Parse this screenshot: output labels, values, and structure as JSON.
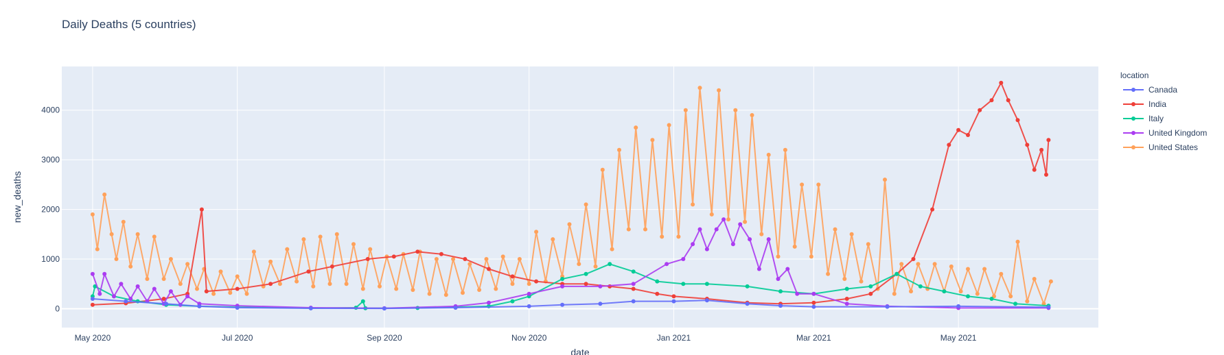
{
  "chart_data": {
    "type": "line",
    "title": "Daily Deaths (5 countries)",
    "xlabel": "date",
    "ylabel": "new_deaths",
    "x_range": [
      "2020-04-18",
      "2021-06-29"
    ],
    "ylim": [
      -380,
      4880
    ],
    "x_ticks": [
      {
        "date": "2020-05-01",
        "label": "May 2020"
      },
      {
        "date": "2020-07-01",
        "label": "Jul 2020"
      },
      {
        "date": "2020-09-01",
        "label": "Sep 2020"
      },
      {
        "date": "2020-11-01",
        "label": "Nov 2020"
      },
      {
        "date": "2021-01-01",
        "label": "Jan 2021"
      },
      {
        "date": "2021-03-01",
        "label": "Mar 2021"
      },
      {
        "date": "2021-05-01",
        "label": "May 2021"
      }
    ],
    "y_ticks": [
      0,
      1000,
      2000,
      3000,
      4000
    ],
    "grid": true,
    "legend_title": "location",
    "legend_position": "right",
    "background": "#e5ecf6",
    "series": [
      {
        "name": "United States",
        "color": "#ffa15a",
        "points": [
          [
            "2020-05-01",
            1900
          ],
          [
            "2020-05-03",
            1200
          ],
          [
            "2020-05-06",
            2300
          ],
          [
            "2020-05-09",
            1500
          ],
          [
            "2020-05-11",
            1000
          ],
          [
            "2020-05-14",
            1750
          ],
          [
            "2020-05-17",
            850
          ],
          [
            "2020-05-20",
            1500
          ],
          [
            "2020-05-24",
            600
          ],
          [
            "2020-05-27",
            1450
          ],
          [
            "2020-05-31",
            600
          ],
          [
            "2020-06-03",
            1000
          ],
          [
            "2020-06-07",
            500
          ],
          [
            "2020-06-10",
            900
          ],
          [
            "2020-06-14",
            400
          ],
          [
            "2020-06-17",
            800
          ],
          [
            "2020-06-21",
            300
          ],
          [
            "2020-06-24",
            750
          ],
          [
            "2020-06-28",
            320
          ],
          [
            "2020-07-01",
            650
          ],
          [
            "2020-07-05",
            300
          ],
          [
            "2020-07-08",
            1150
          ],
          [
            "2020-07-12",
            450
          ],
          [
            "2020-07-15",
            950
          ],
          [
            "2020-07-19",
            500
          ],
          [
            "2020-07-22",
            1200
          ],
          [
            "2020-07-26",
            550
          ],
          [
            "2020-07-29",
            1400
          ],
          [
            "2020-08-02",
            450
          ],
          [
            "2020-08-05",
            1450
          ],
          [
            "2020-08-09",
            500
          ],
          [
            "2020-08-12",
            1500
          ],
          [
            "2020-08-16",
            500
          ],
          [
            "2020-08-19",
            1300
          ],
          [
            "2020-08-23",
            400
          ],
          [
            "2020-08-26",
            1200
          ],
          [
            "2020-08-30",
            450
          ],
          [
            "2020-09-02",
            1050
          ],
          [
            "2020-09-06",
            400
          ],
          [
            "2020-09-09",
            1100
          ],
          [
            "2020-09-13",
            380
          ],
          [
            "2020-09-16",
            1150
          ],
          [
            "2020-09-20",
            300
          ],
          [
            "2020-09-23",
            1000
          ],
          [
            "2020-09-27",
            280
          ],
          [
            "2020-09-30",
            1000
          ],
          [
            "2020-10-04",
            320
          ],
          [
            "2020-10-07",
            900
          ],
          [
            "2020-10-11",
            380
          ],
          [
            "2020-10-14",
            1000
          ],
          [
            "2020-10-18",
            400
          ],
          [
            "2020-10-21",
            1050
          ],
          [
            "2020-10-25",
            500
          ],
          [
            "2020-10-28",
            1000
          ],
          [
            "2020-11-01",
            500
          ],
          [
            "2020-11-04",
            1550
          ],
          [
            "2020-11-08",
            550
          ],
          [
            "2020-11-11",
            1400
          ],
          [
            "2020-11-15",
            650
          ],
          [
            "2020-11-18",
            1700
          ],
          [
            "2020-11-22",
            900
          ],
          [
            "2020-11-25",
            2100
          ],
          [
            "2020-11-29",
            850
          ],
          [
            "2020-12-02",
            2800
          ],
          [
            "2020-12-06",
            1200
          ],
          [
            "2020-12-09",
            3200
          ],
          [
            "2020-12-13",
            1600
          ],
          [
            "2020-12-16",
            3650
          ],
          [
            "2020-12-20",
            1600
          ],
          [
            "2020-12-23",
            3400
          ],
          [
            "2020-12-27",
            1450
          ],
          [
            "2020-12-30",
            3700
          ],
          [
            "2021-01-03",
            1450
          ],
          [
            "2021-01-06",
            4000
          ],
          [
            "2021-01-09",
            2100
          ],
          [
            "2021-01-12",
            4450
          ],
          [
            "2021-01-17",
            1900
          ],
          [
            "2021-01-20",
            4400
          ],
          [
            "2021-01-24",
            1800
          ],
          [
            "2021-01-27",
            4000
          ],
          [
            "2021-01-31",
            1750
          ],
          [
            "2021-02-03",
            3900
          ],
          [
            "2021-02-07",
            1500
          ],
          [
            "2021-02-10",
            3100
          ],
          [
            "2021-02-14",
            1050
          ],
          [
            "2021-02-17",
            3200
          ],
          [
            "2021-02-21",
            1250
          ],
          [
            "2021-02-24",
            2500
          ],
          [
            "2021-02-28",
            1050
          ],
          [
            "2021-03-03",
            2500
          ],
          [
            "2021-03-07",
            700
          ],
          [
            "2021-03-10",
            1600
          ],
          [
            "2021-03-14",
            600
          ],
          [
            "2021-03-17",
            1500
          ],
          [
            "2021-03-21",
            550
          ],
          [
            "2021-03-24",
            1300
          ],
          [
            "2021-03-28",
            400
          ],
          [
            "2021-03-31",
            2600
          ],
          [
            "2021-04-04",
            300
          ],
          [
            "2021-04-07",
            900
          ],
          [
            "2021-04-11",
            350
          ],
          [
            "2021-04-14",
            900
          ],
          [
            "2021-04-18",
            400
          ],
          [
            "2021-04-21",
            900
          ],
          [
            "2021-04-25",
            350
          ],
          [
            "2021-04-28",
            850
          ],
          [
            "2021-05-02",
            350
          ],
          [
            "2021-05-05",
            800
          ],
          [
            "2021-05-09",
            300
          ],
          [
            "2021-05-12",
            800
          ],
          [
            "2021-05-16",
            250
          ],
          [
            "2021-05-19",
            700
          ],
          [
            "2021-05-23",
            250
          ],
          [
            "2021-05-26",
            1350
          ],
          [
            "2021-05-30",
            150
          ],
          [
            "2021-06-02",
            600
          ],
          [
            "2021-06-06",
            100
          ],
          [
            "2021-06-09",
            550
          ]
        ]
      },
      {
        "name": "India",
        "color": "#ef3f38",
        "points": [
          [
            "2020-05-01",
            80
          ],
          [
            "2020-05-15",
            110
          ],
          [
            "2020-05-31",
            200
          ],
          [
            "2020-06-10",
            300
          ],
          [
            "2020-06-16",
            2000
          ],
          [
            "2020-06-18",
            350
          ],
          [
            "2020-07-01",
            400
          ],
          [
            "2020-07-15",
            500
          ],
          [
            "2020-07-31",
            750
          ],
          [
            "2020-08-10",
            850
          ],
          [
            "2020-08-25",
            1000
          ],
          [
            "2020-09-05",
            1050
          ],
          [
            "2020-09-15",
            1150
          ],
          [
            "2020-09-25",
            1100
          ],
          [
            "2020-10-05",
            1000
          ],
          [
            "2020-10-15",
            800
          ],
          [
            "2020-10-25",
            650
          ],
          [
            "2020-11-04",
            550
          ],
          [
            "2020-11-15",
            500
          ],
          [
            "2020-11-25",
            500
          ],
          [
            "2020-12-05",
            450
          ],
          [
            "2020-12-15",
            400
          ],
          [
            "2020-12-25",
            300
          ],
          [
            "2021-01-01",
            250
          ],
          [
            "2021-01-15",
            200
          ],
          [
            "2021-02-01",
            120
          ],
          [
            "2021-02-15",
            100
          ],
          [
            "2021-03-01",
            120
          ],
          [
            "2021-03-15",
            200
          ],
          [
            "2021-03-25",
            300
          ],
          [
            "2021-04-05",
            700
          ],
          [
            "2021-04-12",
            1000
          ],
          [
            "2021-04-20",
            2000
          ],
          [
            "2021-04-27",
            3300
          ],
          [
            "2021-05-01",
            3600
          ],
          [
            "2021-05-05",
            3500
          ],
          [
            "2021-05-10",
            4000
          ],
          [
            "2021-05-15",
            4200
          ],
          [
            "2021-05-19",
            4550
          ],
          [
            "2021-05-22",
            4200
          ],
          [
            "2021-05-26",
            3800
          ],
          [
            "2021-05-30",
            3300
          ],
          [
            "2021-06-02",
            2800
          ],
          [
            "2021-06-05",
            3200
          ],
          [
            "2021-06-07",
            2700
          ],
          [
            "2021-06-08",
            3400
          ]
        ]
      },
      {
        "name": "Italy",
        "color": "#00cc96",
        "points": [
          [
            "2020-05-01",
            250
          ],
          [
            "2020-05-02",
            450
          ],
          [
            "2020-05-10",
            250
          ],
          [
            "2020-05-20",
            150
          ],
          [
            "2020-06-01",
            80
          ],
          [
            "2020-06-15",
            50
          ],
          [
            "2020-07-01",
            30
          ],
          [
            "2020-08-01",
            10
          ],
          [
            "2020-08-20",
            20
          ],
          [
            "2020-08-23",
            150
          ],
          [
            "2020-08-24",
            10
          ],
          [
            "2020-09-15",
            15
          ],
          [
            "2020-10-01",
            30
          ],
          [
            "2020-10-15",
            50
          ],
          [
            "2020-10-25",
            150
          ],
          [
            "2020-11-01",
            250
          ],
          [
            "2020-11-15",
            600
          ],
          [
            "2020-11-25",
            700
          ],
          [
            "2020-12-05",
            900
          ],
          [
            "2020-12-15",
            750
          ],
          [
            "2020-12-25",
            550
          ],
          [
            "2021-01-05",
            500
          ],
          [
            "2021-01-15",
            500
          ],
          [
            "2021-02-01",
            450
          ],
          [
            "2021-02-15",
            350
          ],
          [
            "2021-03-01",
            300
          ],
          [
            "2021-03-15",
            400
          ],
          [
            "2021-03-25",
            450
          ],
          [
            "2021-04-05",
            700
          ],
          [
            "2021-04-15",
            450
          ],
          [
            "2021-04-25",
            350
          ],
          [
            "2021-05-05",
            250
          ],
          [
            "2021-05-15",
            200
          ],
          [
            "2021-05-25",
            100
          ],
          [
            "2021-06-08",
            60
          ]
        ]
      },
      {
        "name": "United Kingdom",
        "color": "#ab3cf1",
        "points": [
          [
            "2020-05-01",
            700
          ],
          [
            "2020-05-04",
            300
          ],
          [
            "2020-05-06",
            700
          ],
          [
            "2020-05-10",
            250
          ],
          [
            "2020-05-13",
            500
          ],
          [
            "2020-05-17",
            200
          ],
          [
            "2020-05-20",
            450
          ],
          [
            "2020-05-24",
            150
          ],
          [
            "2020-05-27",
            400
          ],
          [
            "2020-05-31",
            100
          ],
          [
            "2020-06-03",
            350
          ],
          [
            "2020-06-07",
            80
          ],
          [
            "2020-06-10",
            250
          ],
          [
            "2020-06-15",
            100
          ],
          [
            "2020-07-01",
            60
          ],
          [
            "2020-08-01",
            20
          ],
          [
            "2020-09-01",
            10
          ],
          [
            "2020-10-01",
            50
          ],
          [
            "2020-10-15",
            120
          ],
          [
            "2020-11-01",
            300
          ],
          [
            "2020-11-15",
            450
          ],
          [
            "2020-12-01",
            450
          ],
          [
            "2020-12-15",
            500
          ],
          [
            "2020-12-29",
            900
          ],
          [
            "2021-01-05",
            1000
          ],
          [
            "2021-01-09",
            1300
          ],
          [
            "2021-01-12",
            1600
          ],
          [
            "2021-01-15",
            1200
          ],
          [
            "2021-01-19",
            1600
          ],
          [
            "2021-01-22",
            1800
          ],
          [
            "2021-01-26",
            1300
          ],
          [
            "2021-01-29",
            1700
          ],
          [
            "2021-02-02",
            1400
          ],
          [
            "2021-02-06",
            800
          ],
          [
            "2021-02-10",
            1400
          ],
          [
            "2021-02-14",
            600
          ],
          [
            "2021-02-18",
            800
          ],
          [
            "2021-02-22",
            300
          ],
          [
            "2021-03-01",
            300
          ],
          [
            "2021-03-15",
            100
          ],
          [
            "2021-04-01",
            50
          ],
          [
            "2021-05-01",
            15
          ],
          [
            "2021-06-08",
            15
          ]
        ]
      },
      {
        "name": "Canada",
        "color": "#636efa",
        "points": [
          [
            "2020-05-01",
            200
          ],
          [
            "2020-05-15",
            150
          ],
          [
            "2020-06-01",
            100
          ],
          [
            "2020-06-15",
            50
          ],
          [
            "2020-07-01",
            20
          ],
          [
            "2020-08-01",
            8
          ],
          [
            "2020-09-01",
            5
          ],
          [
            "2020-10-01",
            20
          ],
          [
            "2020-11-01",
            50
          ],
          [
            "2020-11-15",
            80
          ],
          [
            "2020-12-01",
            100
          ],
          [
            "2020-12-15",
            150
          ],
          [
            "2021-01-01",
            150
          ],
          [
            "2021-01-15",
            170
          ],
          [
            "2021-02-01",
            100
          ],
          [
            "2021-02-15",
            60
          ],
          [
            "2021-03-01",
            40
          ],
          [
            "2021-04-01",
            40
          ],
          [
            "2021-05-01",
            50
          ],
          [
            "2021-06-08",
            30
          ]
        ]
      }
    ]
  },
  "legend": {
    "title": "location",
    "items": [
      {
        "label": "Canada",
        "color": "#636efa"
      },
      {
        "label": "India",
        "color": "#ef3f38"
      },
      {
        "label": "Italy",
        "color": "#00cc96"
      },
      {
        "label": "United Kingdom",
        "color": "#ab3cf1"
      },
      {
        "label": "United States",
        "color": "#ffa15a"
      }
    ]
  }
}
